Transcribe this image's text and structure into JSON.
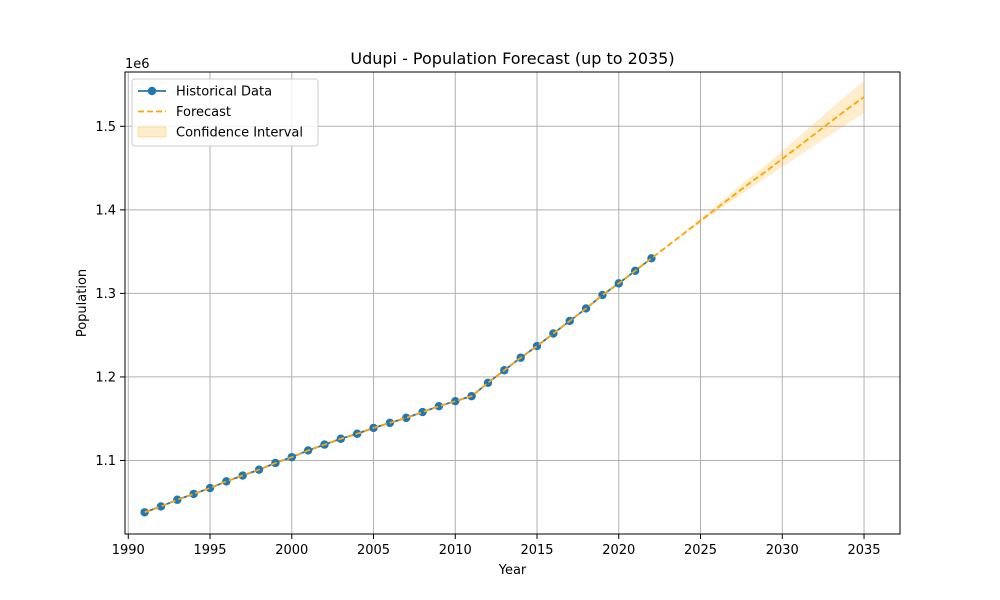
{
  "chart_data": {
    "type": "line",
    "title": "Udupi - Population Forecast (up to 2035)",
    "xlabel": "Year",
    "ylabel": "Population",
    "y_offset_label": "1e6",
    "xlim": [
      1989.8,
      2037.2
    ],
    "ylim": [
      1012000,
      1565000
    ],
    "x_ticks": [
      1990,
      1995,
      2000,
      2005,
      2010,
      2015,
      2020,
      2025,
      2030,
      2035
    ],
    "y_ticks": [
      1.1,
      1.2,
      1.3,
      1.4,
      1.5
    ],
    "y_tick_scale": 1000000,
    "grid": true,
    "legend_position": "top-left",
    "colors": {
      "historical": "#1f77b4",
      "forecast": "#ffa500",
      "confidence": "#ffa500"
    },
    "legend": [
      {
        "label": "Historical Data",
        "kind": "line-marker"
      },
      {
        "label": "Forecast",
        "kind": "dashed"
      },
      {
        "label": "Confidence Interval",
        "kind": "patch"
      }
    ],
    "series": [
      {
        "name": "Historical Data",
        "x": [
          1991,
          1992,
          1993,
          1994,
          1995,
          1996,
          1997,
          1998,
          1999,
          2000,
          2001,
          2002,
          2003,
          2004,
          2005,
          2006,
          2007,
          2008,
          2009,
          2010,
          2011,
          2012,
          2013,
          2014,
          2015,
          2016,
          2017,
          2018,
          2019,
          2020,
          2021,
          2022
        ],
        "y": [
          1038000,
          1045000,
          1053000,
          1060000,
          1067000,
          1075000,
          1082000,
          1089000,
          1097000,
          1104000,
          1112000,
          1119000,
          1126000,
          1132000,
          1139000,
          1145000,
          1151000,
          1158000,
          1165000,
          1171000,
          1177000,
          1193000,
          1208000,
          1223000,
          1237000,
          1252000,
          1267000,
          1282000,
          1298000,
          1312000,
          1327000,
          1342000
        ]
      },
      {
        "name": "Forecast",
        "x": [
          1991,
          1992,
          1993,
          1994,
          1995,
          1996,
          1997,
          1998,
          1999,
          2000,
          2001,
          2002,
          2003,
          2004,
          2005,
          2006,
          2007,
          2008,
          2009,
          2010,
          2011,
          2012,
          2013,
          2014,
          2015,
          2016,
          2017,
          2018,
          2019,
          2020,
          2021,
          2022,
          2023,
          2024,
          2025,
          2026,
          2027,
          2028,
          2029,
          2030,
          2031,
          2032,
          2033,
          2034,
          2035
        ],
        "y": [
          1038000,
          1045000,
          1053000,
          1060000,
          1067000,
          1075000,
          1082000,
          1089000,
          1097000,
          1104000,
          1112000,
          1119000,
          1126000,
          1132000,
          1139000,
          1145000,
          1151000,
          1158000,
          1165000,
          1171000,
          1177000,
          1193000,
          1208000,
          1223000,
          1237000,
          1252000,
          1267000,
          1282000,
          1298000,
          1312000,
          1327000,
          1342000,
          1357000,
          1372000,
          1387000,
          1402000,
          1417000,
          1432000,
          1446000,
          1461000,
          1476000,
          1491000,
          1506000,
          1521000,
          1535000
        ]
      }
    ],
    "confidence_interval": {
      "name": "Confidence Interval",
      "x": [
        2022,
        2023,
        2024,
        2025,
        2026,
        2027,
        2028,
        2029,
        2030,
        2031,
        2032,
        2033,
        2034,
        2035
      ],
      "lower": [
        1342000,
        1356500,
        1370500,
        1384500,
        1398500,
        1412000,
        1425500,
        1438500,
        1451500,
        1464500,
        1477500,
        1490500,
        1503500,
        1516000
      ],
      "upper": [
        1342000,
        1357500,
        1373500,
        1389500,
        1405500,
        1422000,
        1438500,
        1453500,
        1470500,
        1487500,
        1504500,
        1521500,
        1538500,
        1554000
      ]
    }
  }
}
